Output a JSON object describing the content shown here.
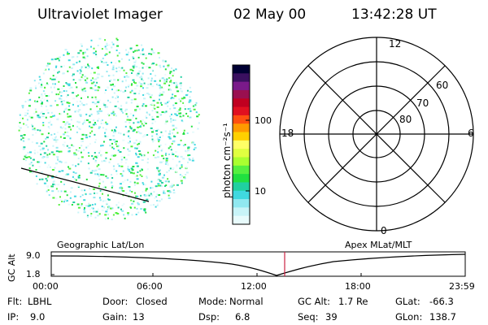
{
  "header": {
    "instrument": "Ultraviolet Imager",
    "date": "02 May 00",
    "time": "13:42:28 UT"
  },
  "colorbar": {
    "unit_label": "photon cm⁻²s⁻¹",
    "ticks": [
      "100",
      "10"
    ],
    "colors": [
      "#000033",
      "#3a1060",
      "#7a1a8a",
      "#9a1050",
      "#c00020",
      "#e01020",
      "#ff5010",
      "#ff9a00",
      "#ffd000",
      "#ffff66",
      "#e0ff40",
      "#aaff30",
      "#55f040",
      "#20e040",
      "#20d0a0",
      "#40d8e0",
      "#90e8f0",
      "#c8f4f8",
      "#e8fbfc"
    ]
  },
  "polar_plot": {
    "labels_mlt": {
      "top": "12",
      "left": "18",
      "right": "6",
      "bottom": "0"
    },
    "labels_lat": [
      "60",
      "70",
      "80"
    ]
  },
  "altitude_panel": {
    "left_title": "Geographic Lat/Lon",
    "right_title": "Apex MLat/MLT",
    "axis_label": "GC Alt",
    "y_ticks": [
      "9.0",
      "1.8"
    ],
    "x_ticks": [
      "00:00",
      "06:00",
      "12:00",
      "18:00",
      "23:59"
    ],
    "marker_color": "#cc2244"
  },
  "status": {
    "filter_label": "Flt:",
    "filter_value": "LBHL",
    "door_label": "Door:",
    "door_value": "Closed",
    "mode_label": "Mode:",
    "mode_value": "Normal",
    "gcalt_label": "GC Alt:",
    "gcalt_value": "1.7 Re",
    "glat_label": "GLat:",
    "glat_value": "-66.3",
    "ip_label": "IP:",
    "ip_value": "9.0",
    "gain_label": "Gain:",
    "gain_value": "13",
    "dsp_label": "Dsp:",
    "dsp_value": "6.8",
    "seq_label": "Seq:",
    "seq_value": "39",
    "glon_label": "GLon:",
    "glon_value": "138.7"
  }
}
